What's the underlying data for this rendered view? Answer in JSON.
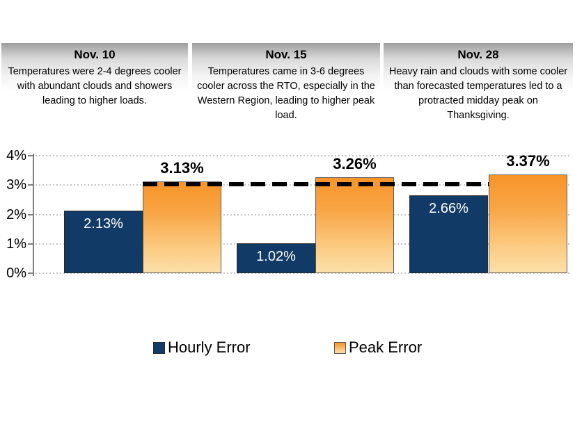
{
  "annotations": [
    {
      "date": "Nov. 10",
      "text": "Temperatures were 2-4 degrees cooler with abundant clouds and showers leading to higher loads."
    },
    {
      "date": "Nov. 15",
      "text": "Temperatures came in 3-6 degrees cooler across the RTO, especially in the Western Region, leading to higher peak load."
    },
    {
      "date": "Nov. 28",
      "text": "Heavy rain and clouds with some cooler than forecasted temperatures led to a protracted midday peak on Thanksgiving."
    }
  ],
  "chart_data": {
    "type": "bar",
    "categories": [
      "Nov. 10",
      "Nov. 15",
      "Nov. 28"
    ],
    "series": [
      {
        "name": "Hourly Error",
        "values": [
          2.13,
          1.02,
          2.66
        ],
        "labels": [
          "2.13%",
          "1.02%",
          "2.66%"
        ],
        "color": "#123a67",
        "label_position": "inside-top",
        "label_color": "#ffffff"
      },
      {
        "name": "Peak Error",
        "values": [
          3.13,
          3.26,
          3.37
        ],
        "labels": [
          "3.13%",
          "3.26%",
          "3.37%"
        ],
        "color_top": "#f79429",
        "color_bottom": "#fce0ab",
        "label_position": "above",
        "label_color": "#000000"
      }
    ],
    "y_axis": {
      "min": 0,
      "max": 4,
      "tick_values": [
        0,
        1,
        2,
        3,
        4
      ],
      "tick_labels": [
        "0%",
        "1%",
        "2%",
        "3%",
        "4%"
      ]
    },
    "reference_line": {
      "value": 3.0,
      "style": "dashed",
      "color": "#000000"
    },
    "grid": "dotted-horizontal",
    "legend": [
      "Hourly Error",
      "Peak Error"
    ],
    "legend_position": "bottom"
  },
  "colors": {
    "hourly_bar": "#123a67",
    "peak_bar_top": "#f79429",
    "peak_bar_bottom": "#fce0ab",
    "axis": "#808080",
    "gridline": "#c4c4c4",
    "reference_line": "#000000",
    "note_box_top": "#9e9e9e"
  }
}
